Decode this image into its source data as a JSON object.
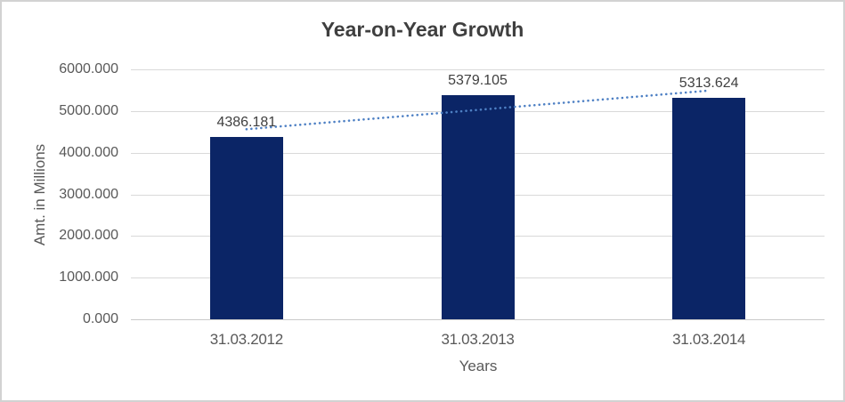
{
  "chart_data": {
    "type": "bar",
    "title": "Year-on-Year Growth",
    "xlabel": "Years",
    "ylabel": "Amt. in Millions",
    "categories": [
      "31.03.2012",
      "31.03.2013",
      "31.03.2014"
    ],
    "values": [
      4386.181,
      5379.105,
      5313.624
    ],
    "data_labels": [
      "4386.181",
      "5379.105",
      "5313.624"
    ],
    "y_ticks": [
      "0.000",
      "1000.000",
      "2000.000",
      "3000.000",
      "4000.000",
      "5000.000",
      "6000.000"
    ],
    "ylim": [
      0,
      6000
    ],
    "grid": "horizontal",
    "legend": "none",
    "trendline": {
      "type": "linear",
      "style": "dotted"
    },
    "colors": {
      "bar": "#0b2566",
      "trendline": "#4e80c4",
      "gridline": "#d9d9d9",
      "axis_line": "#c9c9c9",
      "tick_text": "#595959",
      "axis_title_text": "#595959",
      "title_text": "#3f3f3f",
      "data_label_text": "#404040",
      "frame_border": "#d2d2d2",
      "background": "#ffffff"
    }
  }
}
